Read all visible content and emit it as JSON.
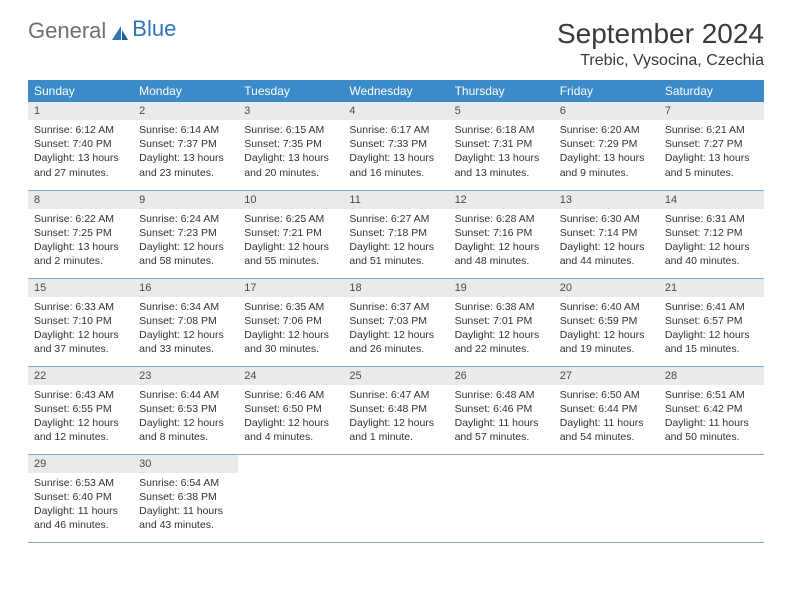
{
  "brand": {
    "part1": "General",
    "part2": "Blue"
  },
  "title": "September 2024",
  "location": "Trebic, Vysocina, Czechia",
  "colors": {
    "header_bg": "#3b8bc9",
    "header_text": "#ffffff",
    "daynum_bg": "#e9eaeb",
    "cell_border": "#7fa9cc",
    "logo_general": "#6d6e71",
    "logo_blue": "#2e75b6"
  },
  "weekdays": [
    "Sunday",
    "Monday",
    "Tuesday",
    "Wednesday",
    "Thursday",
    "Friday",
    "Saturday"
  ],
  "weeks": [
    [
      {
        "n": "1",
        "sr": "Sunrise: 6:12 AM",
        "ss": "Sunset: 7:40 PM",
        "dl": "Daylight: 13 hours and 27 minutes."
      },
      {
        "n": "2",
        "sr": "Sunrise: 6:14 AM",
        "ss": "Sunset: 7:37 PM",
        "dl": "Daylight: 13 hours and 23 minutes."
      },
      {
        "n": "3",
        "sr": "Sunrise: 6:15 AM",
        "ss": "Sunset: 7:35 PM",
        "dl": "Daylight: 13 hours and 20 minutes."
      },
      {
        "n": "4",
        "sr": "Sunrise: 6:17 AM",
        "ss": "Sunset: 7:33 PM",
        "dl": "Daylight: 13 hours and 16 minutes."
      },
      {
        "n": "5",
        "sr": "Sunrise: 6:18 AM",
        "ss": "Sunset: 7:31 PM",
        "dl": "Daylight: 13 hours and 13 minutes."
      },
      {
        "n": "6",
        "sr": "Sunrise: 6:20 AM",
        "ss": "Sunset: 7:29 PM",
        "dl": "Daylight: 13 hours and 9 minutes."
      },
      {
        "n": "7",
        "sr": "Sunrise: 6:21 AM",
        "ss": "Sunset: 7:27 PM",
        "dl": "Daylight: 13 hours and 5 minutes."
      }
    ],
    [
      {
        "n": "8",
        "sr": "Sunrise: 6:22 AM",
        "ss": "Sunset: 7:25 PM",
        "dl": "Daylight: 13 hours and 2 minutes."
      },
      {
        "n": "9",
        "sr": "Sunrise: 6:24 AM",
        "ss": "Sunset: 7:23 PM",
        "dl": "Daylight: 12 hours and 58 minutes."
      },
      {
        "n": "10",
        "sr": "Sunrise: 6:25 AM",
        "ss": "Sunset: 7:21 PM",
        "dl": "Daylight: 12 hours and 55 minutes."
      },
      {
        "n": "11",
        "sr": "Sunrise: 6:27 AM",
        "ss": "Sunset: 7:18 PM",
        "dl": "Daylight: 12 hours and 51 minutes."
      },
      {
        "n": "12",
        "sr": "Sunrise: 6:28 AM",
        "ss": "Sunset: 7:16 PM",
        "dl": "Daylight: 12 hours and 48 minutes."
      },
      {
        "n": "13",
        "sr": "Sunrise: 6:30 AM",
        "ss": "Sunset: 7:14 PM",
        "dl": "Daylight: 12 hours and 44 minutes."
      },
      {
        "n": "14",
        "sr": "Sunrise: 6:31 AM",
        "ss": "Sunset: 7:12 PM",
        "dl": "Daylight: 12 hours and 40 minutes."
      }
    ],
    [
      {
        "n": "15",
        "sr": "Sunrise: 6:33 AM",
        "ss": "Sunset: 7:10 PM",
        "dl": "Daylight: 12 hours and 37 minutes."
      },
      {
        "n": "16",
        "sr": "Sunrise: 6:34 AM",
        "ss": "Sunset: 7:08 PM",
        "dl": "Daylight: 12 hours and 33 minutes."
      },
      {
        "n": "17",
        "sr": "Sunrise: 6:35 AM",
        "ss": "Sunset: 7:06 PM",
        "dl": "Daylight: 12 hours and 30 minutes."
      },
      {
        "n": "18",
        "sr": "Sunrise: 6:37 AM",
        "ss": "Sunset: 7:03 PM",
        "dl": "Daylight: 12 hours and 26 minutes."
      },
      {
        "n": "19",
        "sr": "Sunrise: 6:38 AM",
        "ss": "Sunset: 7:01 PM",
        "dl": "Daylight: 12 hours and 22 minutes."
      },
      {
        "n": "20",
        "sr": "Sunrise: 6:40 AM",
        "ss": "Sunset: 6:59 PM",
        "dl": "Daylight: 12 hours and 19 minutes."
      },
      {
        "n": "21",
        "sr": "Sunrise: 6:41 AM",
        "ss": "Sunset: 6:57 PM",
        "dl": "Daylight: 12 hours and 15 minutes."
      }
    ],
    [
      {
        "n": "22",
        "sr": "Sunrise: 6:43 AM",
        "ss": "Sunset: 6:55 PM",
        "dl": "Daylight: 12 hours and 12 minutes."
      },
      {
        "n": "23",
        "sr": "Sunrise: 6:44 AM",
        "ss": "Sunset: 6:53 PM",
        "dl": "Daylight: 12 hours and 8 minutes."
      },
      {
        "n": "24",
        "sr": "Sunrise: 6:46 AM",
        "ss": "Sunset: 6:50 PM",
        "dl": "Daylight: 12 hours and 4 minutes."
      },
      {
        "n": "25",
        "sr": "Sunrise: 6:47 AM",
        "ss": "Sunset: 6:48 PM",
        "dl": "Daylight: 12 hours and 1 minute."
      },
      {
        "n": "26",
        "sr": "Sunrise: 6:48 AM",
        "ss": "Sunset: 6:46 PM",
        "dl": "Daylight: 11 hours and 57 minutes."
      },
      {
        "n": "27",
        "sr": "Sunrise: 6:50 AM",
        "ss": "Sunset: 6:44 PM",
        "dl": "Daylight: 11 hours and 54 minutes."
      },
      {
        "n": "28",
        "sr": "Sunrise: 6:51 AM",
        "ss": "Sunset: 6:42 PM",
        "dl": "Daylight: 11 hours and 50 minutes."
      }
    ],
    [
      {
        "n": "29",
        "sr": "Sunrise: 6:53 AM",
        "ss": "Sunset: 6:40 PM",
        "dl": "Daylight: 11 hours and 46 minutes."
      },
      {
        "n": "30",
        "sr": "Sunrise: 6:54 AM",
        "ss": "Sunset: 6:38 PM",
        "dl": "Daylight: 11 hours and 43 minutes."
      },
      null,
      null,
      null,
      null,
      null
    ]
  ]
}
